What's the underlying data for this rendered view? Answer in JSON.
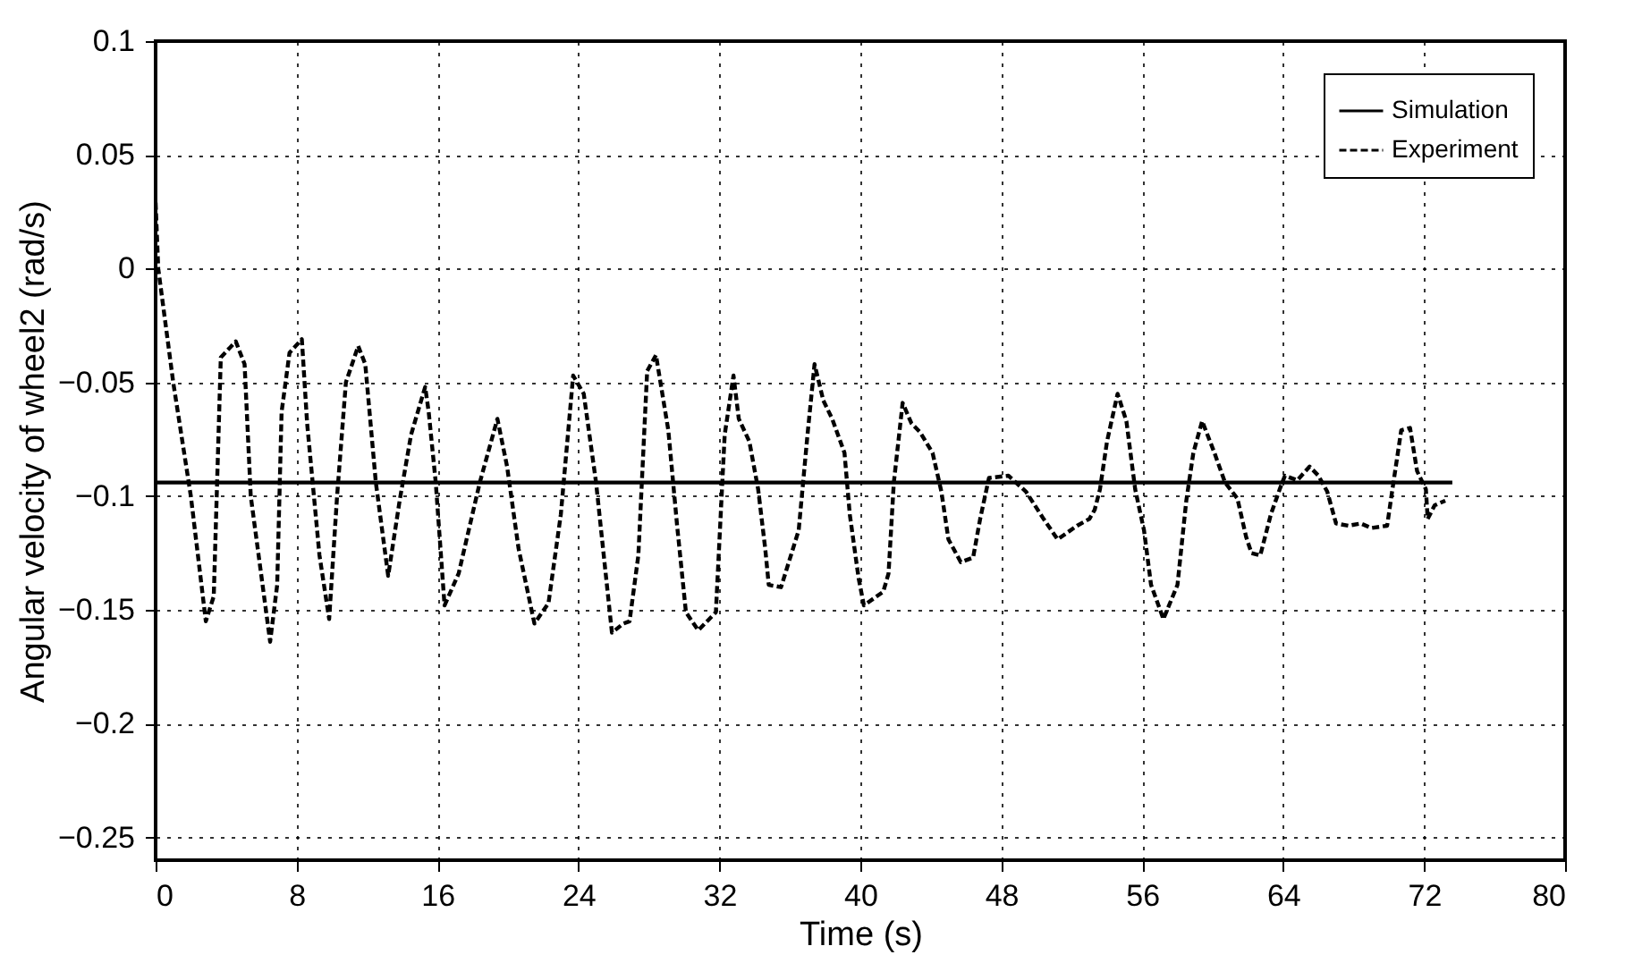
{
  "chart_data": {
    "type": "line",
    "xlabel": "Time (s)",
    "ylabel": "Angular velocity of wheel2 (rad/s)",
    "xlim": [
      0,
      80
    ],
    "xticks": [
      0,
      8,
      16,
      24,
      32,
      40,
      48,
      56,
      64,
      72,
      80
    ],
    "ylim": [
      -0.26,
      0.1
    ],
    "yticks": [
      0.1,
      0.05,
      0,
      -0.05,
      -0.1,
      -0.15,
      -0.2,
      -0.25
    ],
    "grid": true,
    "legend": "top right",
    "series": [
      {
        "name": "Simulation",
        "color": "#000000",
        "line_style": "solid",
        "x": [
          0,
          73.6
        ],
        "values": [
          -0.094,
          -0.094
        ]
      },
      {
        "name": "Experiment",
        "color": "#000000",
        "line_style": "dashed",
        "x": [
          0,
          0.15,
          1,
          2,
          2.85,
          3.3,
          3.7,
          4.55,
          5.05,
          5.4,
          6.5,
          6.9,
          7.15,
          7.6,
          8.3,
          8.6,
          9.3,
          9.85,
          10.3,
          10.8,
          11.5,
          11.9,
          12.5,
          13.2,
          13.85,
          14.5,
          15.3,
          15.5,
          15.9,
          16.4,
          17.2,
          18.4,
          19.4,
          19.95,
          20.6,
          21.5,
          22.3,
          23,
          23.7,
          24.3,
          25,
          25.9,
          26.55,
          26.9,
          27.4,
          27.9,
          28.4,
          29.1,
          29.6,
          30.1,
          30.8,
          31.8,
          32.3,
          32.8,
          33.1,
          33.7,
          34.2,
          34.6,
          34.8,
          35.5,
          36.5,
          37,
          37.4,
          37.9,
          38.4,
          39.1,
          39.4,
          39.9,
          40.2,
          41.3,
          41.6,
          41.9,
          42.4,
          42.9,
          43.4,
          44.1,
          44.6,
          45,
          45.7,
          46.4,
          46.8,
          47.3,
          48.4,
          49.4,
          50.4,
          51.2,
          52.3,
          53,
          53.3,
          53.6,
          54,
          54.6,
          55.1,
          55.6,
          56.1,
          56.5,
          57.2,
          58,
          58.5,
          58.9,
          59.4,
          60.1,
          60.7,
          61.4,
          61.9,
          62.2,
          62.7,
          63.3,
          63.8,
          64.1,
          64.8,
          65.5,
          66,
          66.5,
          67,
          67.7,
          68.4,
          69,
          69.9,
          70.2,
          70.7,
          71.2,
          71.6,
          72.1,
          72.2,
          72.6,
          73.2
        ],
        "values": [
          0.029,
          0,
          -0.05,
          -0.1,
          -0.155,
          -0.144,
          -0.039,
          -0.032,
          -0.042,
          -0.1,
          -0.164,
          -0.139,
          -0.063,
          -0.037,
          -0.031,
          -0.068,
          -0.126,
          -0.154,
          -0.1,
          -0.05,
          -0.034,
          -0.042,
          -0.094,
          -0.135,
          -0.102,
          -0.073,
          -0.052,
          -0.063,
          -0.094,
          -0.148,
          -0.134,
          -0.094,
          -0.066,
          -0.087,
          -0.123,
          -0.156,
          -0.147,
          -0.108,
          -0.047,
          -0.055,
          -0.094,
          -0.16,
          -0.156,
          -0.155,
          -0.126,
          -0.045,
          -0.038,
          -0.071,
          -0.113,
          -0.151,
          -0.159,
          -0.151,
          -0.073,
          -0.047,
          -0.066,
          -0.076,
          -0.097,
          -0.123,
          -0.139,
          -0.14,
          -0.115,
          -0.073,
          -0.042,
          -0.058,
          -0.066,
          -0.081,
          -0.108,
          -0.136,
          -0.148,
          -0.142,
          -0.134,
          -0.094,
          -0.059,
          -0.068,
          -0.072,
          -0.081,
          -0.098,
          -0.119,
          -0.129,
          -0.127,
          -0.11,
          -0.092,
          -0.091,
          -0.098,
          -0.11,
          -0.119,
          -0.113,
          -0.11,
          -0.106,
          -0.097,
          -0.076,
          -0.055,
          -0.067,
          -0.097,
          -0.115,
          -0.139,
          -0.154,
          -0.139,
          -0.102,
          -0.081,
          -0.067,
          -0.081,
          -0.094,
          -0.101,
          -0.118,
          -0.125,
          -0.126,
          -0.108,
          -0.097,
          -0.091,
          -0.093,
          -0.087,
          -0.091,
          -0.098,
          -0.112,
          -0.113,
          -0.112,
          -0.114,
          -0.113,
          -0.097,
          -0.071,
          -0.07,
          -0.089,
          -0.097,
          -0.11,
          -0.104,
          -0.102
        ]
      }
    ]
  }
}
